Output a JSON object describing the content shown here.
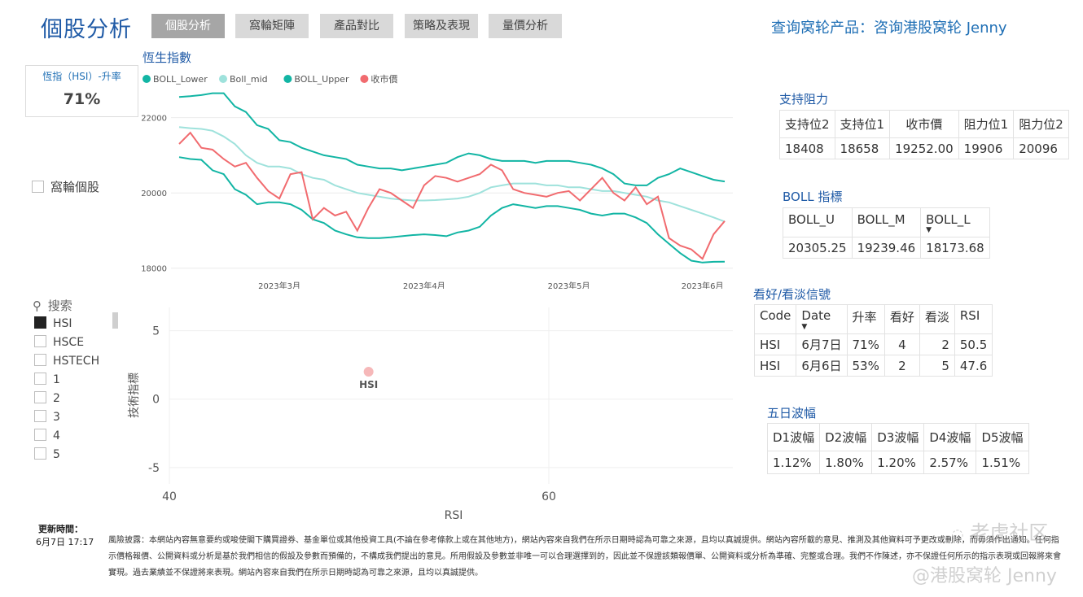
{
  "header": {
    "title": "個股分析",
    "tabs": [
      {
        "label": "個股分析",
        "active": true
      },
      {
        "label": "窩輪矩陣",
        "active": false
      },
      {
        "label": "產品對比",
        "active": false
      },
      {
        "label": "策略及表現",
        "active": false
      },
      {
        "label": "量價分析",
        "active": false
      }
    ],
    "inquiry": "查询窝轮产品：咨询港股窝轮 Jenny"
  },
  "kpi": {
    "label": "恆指（HSI）-升率",
    "value": "71%"
  },
  "warrant_checkbox": {
    "label": "窩輪個股",
    "checked": false
  },
  "slicer": {
    "search_placeholder": "搜索",
    "items": [
      {
        "label": "HSI",
        "checked": true
      },
      {
        "label": "HSCE",
        "checked": false
      },
      {
        "label": "HSTECH",
        "checked": false
      },
      {
        "label": "1",
        "checked": false
      },
      {
        "label": "2",
        "checked": false
      },
      {
        "label": "3",
        "checked": false
      },
      {
        "label": "4",
        "checked": false
      },
      {
        "label": "5",
        "checked": false
      }
    ]
  },
  "colors": {
    "accent": "#1f5aa6",
    "boll_lower": "#12b5a4",
    "boll_mid": "#9fe2dc",
    "boll_upper": "#12b5a4",
    "close": "#f16b6f"
  },
  "support_resistance": {
    "title": "支持阻力",
    "headers": [
      "支持位2",
      "支持位1",
      "收市價",
      "阻力位1",
      "阻力位2"
    ],
    "values": [
      "18408",
      "18658",
      "19252.00",
      "19906",
      "20096"
    ]
  },
  "boll": {
    "title": "BOLL 指標",
    "headers": [
      "BOLL_U",
      "BOLL_M",
      "BOLL_L"
    ],
    "values": [
      "20305.25",
      "19239.46",
      "18173.68"
    ]
  },
  "signals": {
    "title": "看好/看淡信號",
    "headers": [
      "Code",
      "Date",
      "升率",
      "看好",
      "看淡",
      "RSI"
    ],
    "rows": [
      [
        "HSI",
        "6月7日",
        "71%",
        "4",
        "2",
        "50.5"
      ],
      [
        "HSI",
        "6月6日",
        "53%",
        "2",
        "5",
        "47.6"
      ]
    ]
  },
  "volatility": {
    "title": "五日波幅",
    "headers": [
      "D1波幅",
      "D2波幅",
      "D3波幅",
      "D4波幅",
      "D5波幅"
    ],
    "values": [
      "1.12%",
      "1.80%",
      "1.20%",
      "2.57%",
      "1.51%"
    ]
  },
  "footer": {
    "update_label": "更新時間：",
    "update_time": "6月7日 17:17",
    "disclaimer": "風險披露：本網站內容無意要約或唆使閣下購買證券、基金單位或其他投資工具(不論在參考條款上或在其他地方)，網站內容來自我們在所示日期時認為可靠之來源，且均以真誠提供。網站內容所載的意見、推測及其他資料可予更改或刪除，而毋須作出通知。任何指示價格報價、公開資料或分析是基於我們相信的假設及參數而預備的，不構成我們提出的意見。所用假設及參數並非唯一可以合理選擇到的，因此並不保證該類報價單、公開資料或分析為準確、完整或合理。我們不作陳述，亦不保證任何所示的指示表現或回報將來會實現。過去業績並不保證將來表現。網站內容來自我們在所示日期時認為可靠之來源，且均以真誠提供。",
    "watermark_1": "老虎社区",
    "watermark_2": "@港股窝轮 Jenny"
  },
  "chart_data": [
    {
      "type": "line",
      "title": "恆生指數",
      "x_ticks": [
        "2023年3月",
        "2023年4月",
        "2023年5月",
        "2023年6月"
      ],
      "y_ticks": [
        18000,
        20000,
        22000
      ],
      "ylim": [
        17800,
        22900
      ],
      "legend_position": "top-left",
      "series": [
        {
          "name": "BOLL_Lower",
          "color": "#12b5a4",
          "values": [
            20950,
            20900,
            20880,
            20600,
            20500,
            20100,
            19950,
            19700,
            19750,
            19750,
            19700,
            19550,
            19300,
            19200,
            19000,
            18900,
            18820,
            18800,
            18800,
            18820,
            18850,
            18880,
            18900,
            18880,
            18850,
            18950,
            19000,
            19100,
            19400,
            19600,
            19700,
            19650,
            19600,
            19650,
            19650,
            19600,
            19550,
            19450,
            19400,
            19450,
            19450,
            19350,
            19200,
            18900,
            18650,
            18400,
            18200,
            18150,
            18170,
            18174
          ]
        },
        {
          "name": "Boll_mid",
          "color": "#9fe2dc",
          "values": [
            21750,
            21720,
            21700,
            21650,
            21500,
            21300,
            21000,
            20800,
            20700,
            20700,
            20650,
            20500,
            20400,
            20350,
            20200,
            20100,
            20000,
            19950,
            19900,
            19850,
            19820,
            19800,
            19800,
            19810,
            19830,
            19850,
            19900,
            20000,
            20150,
            20200,
            20250,
            20250,
            20250,
            20200,
            20200,
            20150,
            20150,
            20100,
            20050,
            20050,
            20000,
            19950,
            19900,
            19800,
            19750,
            19650,
            19550,
            19450,
            19350,
            19239
          ]
        },
        {
          "name": "BOLL_Upper",
          "color": "#12b5a4",
          "values": [
            22550,
            22570,
            22600,
            22650,
            22650,
            22300,
            22150,
            21800,
            21700,
            21400,
            21350,
            21200,
            21100,
            21000,
            20950,
            20900,
            20750,
            20700,
            20650,
            20650,
            20600,
            20650,
            20700,
            20750,
            20800,
            20950,
            21050,
            21000,
            20900,
            20850,
            20850,
            20850,
            20800,
            20850,
            20850,
            20850,
            20800,
            20750,
            20650,
            20500,
            20250,
            20200,
            20200,
            20400,
            20500,
            20650,
            20550,
            20450,
            20350,
            20305
          ]
        },
        {
          "name": "收市價",
          "color": "#f16b6f",
          "values": [
            21300,
            21600,
            21200,
            21150,
            20900,
            20700,
            20800,
            20400,
            20050,
            19850,
            20500,
            20550,
            19300,
            19600,
            19400,
            19500,
            19000,
            19600,
            20100,
            20000,
            19800,
            19600,
            20200,
            20450,
            20400,
            20300,
            20400,
            20500,
            20750,
            20600,
            20100,
            20000,
            19950,
            19900,
            20000,
            20050,
            19800,
            20100,
            20400,
            20000,
            19800,
            20150,
            19700,
            19900,
            18800,
            18600,
            18500,
            18250,
            18900,
            19252
          ]
        }
      ]
    },
    {
      "type": "scatter",
      "xlabel": "RSI",
      "ylabel": "技術指標",
      "xlim": [
        40,
        60
      ],
      "ylim": [
        -5,
        5
      ],
      "x_ticks": [
        40,
        60
      ],
      "y_ticks": [
        5,
        0,
        -5
      ],
      "points": [
        {
          "label": "HSI",
          "x": 50.5,
          "y": 2
        }
      ]
    }
  ]
}
